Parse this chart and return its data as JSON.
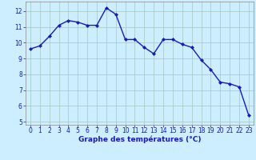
{
  "x": [
    0,
    1,
    2,
    3,
    4,
    5,
    6,
    7,
    8,
    9,
    10,
    11,
    12,
    13,
    14,
    15,
    16,
    17,
    18,
    19,
    20,
    21,
    22,
    23
  ],
  "y": [
    9.6,
    9.8,
    10.4,
    11.1,
    11.4,
    11.3,
    11.1,
    11.1,
    12.2,
    11.8,
    10.2,
    10.2,
    9.7,
    9.3,
    10.2,
    10.2,
    9.9,
    9.7,
    8.9,
    8.3,
    7.5,
    7.4,
    7.2,
    5.4
  ],
  "line_color": "#1a1ab8",
  "marker": "D",
  "marker_size": 2.0,
  "line_width": 1.0,
  "bg_color": "#cceeff",
  "grid_color": "#aacccc",
  "xlabel": "Graphe des températures (°C)",
  "xlabel_color": "#1a1ab8",
  "xlabel_fontsize": 6.5,
  "tick_color": "#1a1ab8",
  "tick_fontsize": 5.5,
  "ylim": [
    4.8,
    12.6
  ],
  "yticks": [
    5,
    6,
    7,
    8,
    9,
    10,
    11,
    12
  ],
  "xlim": [
    -0.5,
    23.5
  ],
  "xticks": [
    0,
    1,
    2,
    3,
    4,
    5,
    6,
    7,
    8,
    9,
    10,
    11,
    12,
    13,
    14,
    15,
    16,
    17,
    18,
    19,
    20,
    21,
    22,
    23
  ]
}
